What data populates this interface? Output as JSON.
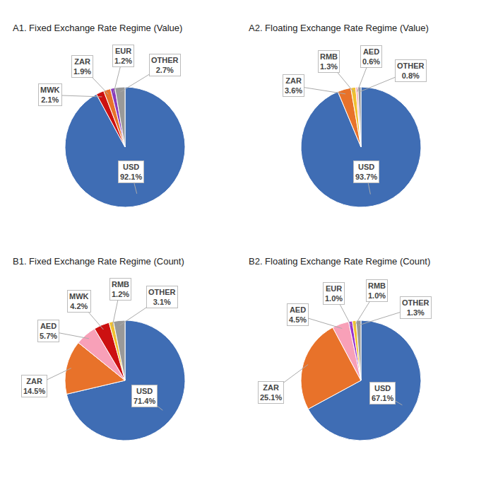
{
  "chart_data": [
    {
      "type": "pie",
      "title": "A1. Fixed Exchange Rate Regime (Value)",
      "categories": [
        "USD",
        "MWK",
        "ZAR",
        "EUR",
        "OTHER"
      ],
      "values": [
        92.1,
        2.1,
        1.9,
        1.2,
        2.7
      ],
      "value_labels": [
        "USD\n92.1%",
        "MWK\n2.1%",
        "ZAR\n1.9%",
        "EUR\n1.2%",
        "OTHER\n2.7%"
      ],
      "colors": [
        "#3F6DB4",
        "#CC1111",
        "#E8722A",
        "#8B3ABB",
        "#999999"
      ],
      "data_labels": true
    },
    {
      "type": "pie",
      "title": "A2. Floating Exchange Rate Regime (Value)",
      "categories": [
        "USD",
        "ZAR",
        "RMB",
        "AED",
        "OTHER"
      ],
      "values": [
        93.7,
        3.6,
        1.3,
        0.6,
        0.8
      ],
      "value_labels": [
        "USD\n93.7%",
        "ZAR\n3.6%",
        "RMB\n1.3%",
        "AED\n0.6%",
        "OTHER\n0.8%"
      ],
      "colors": [
        "#3F6DB4",
        "#E8722A",
        "#F0C030",
        "#F8B0C0",
        "#999999"
      ],
      "data_labels": true
    },
    {
      "type": "pie",
      "title": "B1. Fixed Exchange Rate Regime (Count)",
      "categories": [
        "USD",
        "ZAR",
        "AED",
        "MWK",
        "RMB",
        "OTHER"
      ],
      "values": [
        71.4,
        14.5,
        5.7,
        4.2,
        1.2,
        3.1
      ],
      "value_labels": [
        "USD\n71.4%",
        "ZAR\n14.5%",
        "AED\n5.7%",
        "MWK\n4.2%",
        "RMB\n1.2%",
        "OTHER\n3.1%"
      ],
      "colors": [
        "#3F6DB4",
        "#E8722A",
        "#F8A0B8",
        "#CC1111",
        "#F0C030",
        "#999999"
      ],
      "data_labels": true
    },
    {
      "type": "pie",
      "title": "B2. Floating Exchange Rate Regime (Count)",
      "categories": [
        "USD",
        "ZAR",
        "AED",
        "EUR",
        "RMB",
        "OTHER"
      ],
      "values": [
        67.1,
        25.1,
        4.5,
        1.0,
        1.0,
        1.3
      ],
      "value_labels": [
        "USD\n67.1%",
        "ZAR\n25.1%",
        "AED\n4.5%",
        "EUR\n1.0%",
        "RMB\n1.0%",
        "OTHER\n1.3%"
      ],
      "colors": [
        "#3F6DB4",
        "#E8722A",
        "#F8A0B8",
        "#9933CC",
        "#F0C030",
        "#999999"
      ],
      "data_labels": true
    }
  ]
}
